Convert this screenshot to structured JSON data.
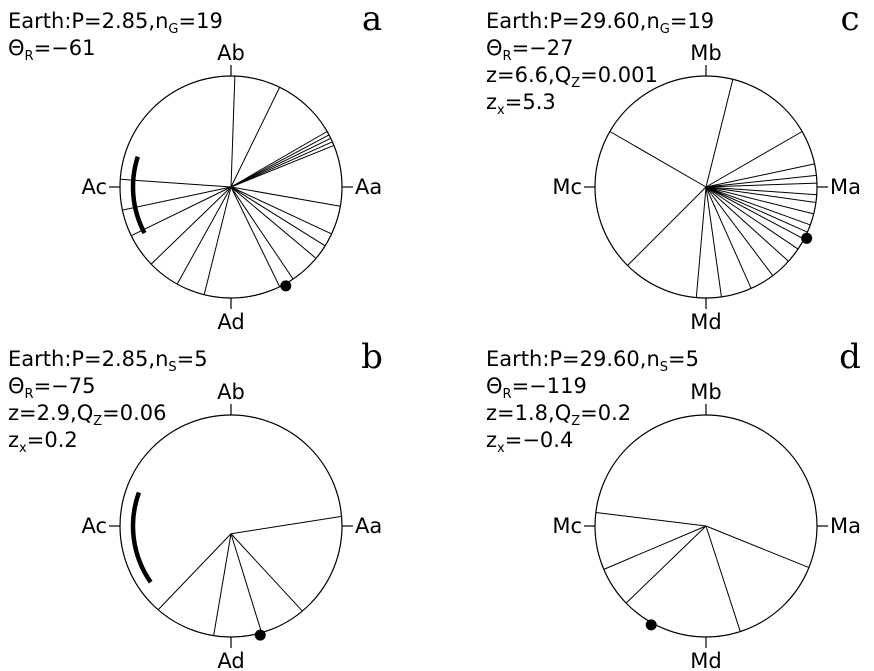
{
  "chart_data": [
    {
      "type": "circular",
      "panel": "a",
      "info_lines": [
        {
          "text": "Earth:P=2.85,n",
          "sub": "G",
          "tail": "=19"
        },
        {
          "text": "Θ",
          "sub": "R",
          "tail": "=−61"
        }
      ],
      "axis_labels": {
        "top": "Ab",
        "right": "Aa",
        "bottom": "Ad",
        "left": "Ac"
      },
      "center_offset": [
        0.0,
        0.0
      ],
      "ray_angles_deg": [
        88,
        64,
        30,
        28,
        26,
        24,
        22,
        -10,
        -25,
        -32,
        -40,
        -56,
        -64,
        -104,
        -119,
        -136,
        -154,
        -168,
        176
      ],
      "mean_arc_deg": [
        162,
        208
      ],
      "dot_angle_deg": -61
    },
    {
      "type": "circular",
      "panel": "b",
      "info_lines": [
        {
          "text": "Earth:P=2.85,n",
          "sub": "S",
          "tail": "=5"
        },
        {
          "text": "Θ",
          "sub": "R",
          "tail": "=−75"
        },
        {
          "text": "z=2.9,Q",
          "sub": "Z",
          "tail": "=0.06"
        },
        {
          "text": "z",
          "sub": "x",
          "tail": "=0.2"
        }
      ],
      "axis_labels": {
        "top": "Ab",
        "right": "Aa",
        "bottom": "Ad",
        "left": "Ac"
      },
      "center_offset": [
        0.0,
        -0.07
      ],
      "ray_angles_deg": [
        5,
        -50,
        -74,
        -99,
        -131
      ],
      "mean_arc_deg": [
        160,
        215
      ],
      "dot_angle_deg": -75
    },
    {
      "type": "circular",
      "panel": "c",
      "info_lines": [
        {
          "text": "Earth:P=29.60,n",
          "sub": "G",
          "tail": "=19"
        },
        {
          "text": "Θ",
          "sub": "R",
          "tail": "=−27"
        },
        {
          "text": "z=6.6,Q",
          "sub": "Z",
          "tail": "=0.001"
        },
        {
          "text": "z",
          "sub": "x",
          "tail": "=5.3"
        }
      ],
      "axis_labels": {
        "top": "Mb",
        "right": "Ma",
        "bottom": "Md",
        "left": "Mc"
      },
      "center_offset": [
        0.0,
        0.0
      ],
      "ray_angles_deg": [
        76,
        30,
        12,
        6,
        2,
        -4,
        -8,
        -14,
        -20,
        -24,
        -28,
        -34,
        -42,
        -53,
        -66,
        -82,
        -95,
        -135,
        150
      ],
      "mean_arc_deg": null,
      "dot_angle_deg": -27
    },
    {
      "type": "circular",
      "panel": "d",
      "info_lines": [
        {
          "text": "Earth:P=29.60,n",
          "sub": "S",
          "tail": "=5"
        },
        {
          "text": "Θ",
          "sub": "R",
          "tail": "=−119"
        },
        {
          "text": "z=1.8,Q",
          "sub": "Z",
          "tail": "=0.2"
        },
        {
          "text": "z",
          "sub": "x",
          "tail": "=−0.4"
        }
      ],
      "axis_labels": {
        "top": "Mb",
        "right": "Ma",
        "bottom": "Md",
        "left": "Mc"
      },
      "center_offset": [
        0.0,
        0.0
      ],
      "ray_angles_deg": [
        -22,
        -72,
        -136,
        -157,
        173
      ],
      "mean_arc_deg": null,
      "dot_angle_deg": -119
    }
  ]
}
